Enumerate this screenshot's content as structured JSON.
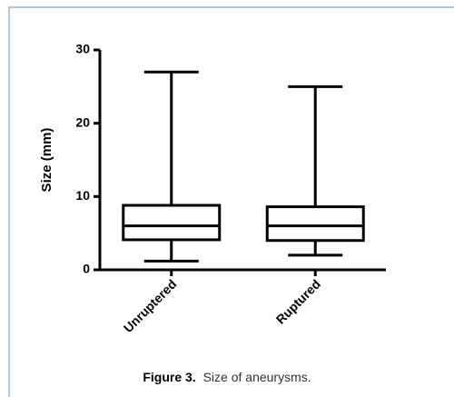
{
  "chart_data": {
    "type": "box",
    "y_label": "Size (mm)",
    "categories": [
      "Unruptered",
      "Ruptured"
    ],
    "boxes": [
      {
        "min": 1.2,
        "q1": 4.1,
        "median": 6,
        "q3": 8.8,
        "max": 27
      },
      {
        "min": 2,
        "q1": 4,
        "median": 6,
        "q3": 8.6,
        "max": 25
      }
    ],
    "color": "#000000",
    "ylim": [
      0,
      30
    ],
    "yticks": [
      0,
      10,
      20,
      30
    ]
  },
  "caption": {
    "label": "Figure 3.",
    "text": "Size of aneurysms."
  }
}
